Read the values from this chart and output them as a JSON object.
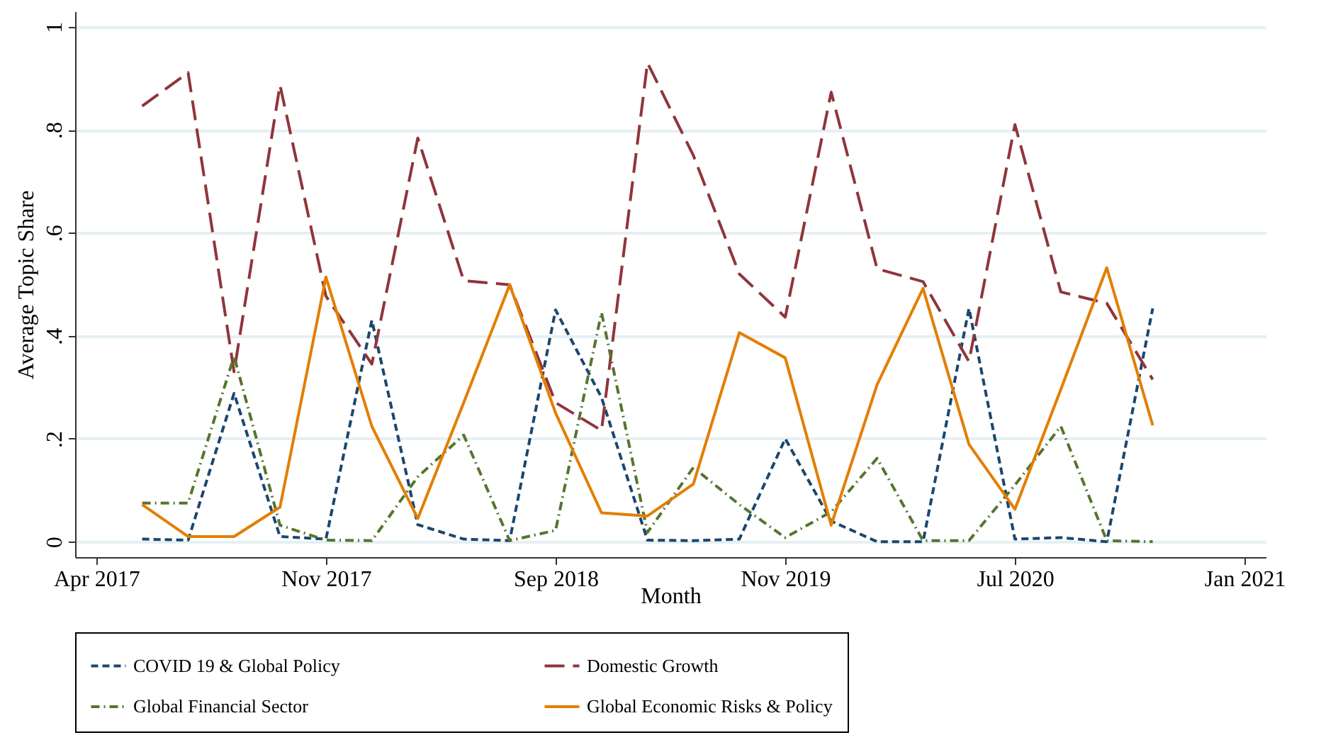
{
  "chart_data": {
    "type": "line",
    "xlabel": "Month",
    "ylabel": "Average Topic Share",
    "categories": [
      "Apr 2017",
      null,
      null,
      null,
      null,
      "Nov 2017",
      null,
      null,
      null,
      null,
      "Sep 2018",
      null,
      null,
      null,
      null,
      "Nov 2019",
      null,
      null,
      null,
      null,
      "Jul 2020",
      null,
      null,
      null,
      null,
      "Jan 2021"
    ],
    "ylim": [
      -0.03,
      1.03
    ],
    "yticks": [
      0,
      {
        "value": 0.2,
        "label": ".2"
      },
      {
        "value": 0.4,
        "label": ".4"
      },
      {
        "value": 0.6,
        "label": ".6"
      },
      {
        "value": 0.8,
        "label": ".8"
      },
      1
    ],
    "grid": "y",
    "legend": "bottom",
    "marker": "none",
    "series": [
      {
        "name": "COVID 19 & Global Policy",
        "color": "#1a476f",
        "line_style": "dashed",
        "values": [
          null,
          0.005,
          0.003,
          0.288,
          0.01,
          0.005,
          0.43,
          0.033,
          0.005,
          0.002,
          0.45,
          0.28,
          0.003,
          0.002,
          0.005,
          0.2,
          0.04,
          0.0,
          0.0,
          0.453,
          0.005,
          0.008,
          0.0,
          0.453,
          null,
          null
        ]
      },
      {
        "name": "Domestic Growth",
        "color": "#90353b",
        "line_style": "longdash",
        "values": [
          null,
          0.846,
          0.911,
          0.33,
          0.887,
          0.477,
          0.345,
          0.784,
          0.507,
          0.499,
          0.27,
          0.216,
          0.93,
          0.75,
          0.52,
          0.436,
          0.873,
          0.53,
          0.505,
          0.35,
          0.81,
          0.485,
          0.463,
          0.315,
          null,
          null
        ]
      },
      {
        "name": "Global Financial Sector",
        "color": "#55752f",
        "line_style": "dashdot",
        "values": [
          null,
          0.075,
          0.075,
          0.36,
          0.032,
          0.003,
          0.002,
          0.126,
          0.207,
          0.002,
          0.022,
          0.445,
          0.018,
          0.144,
          0.072,
          0.008,
          0.058,
          0.162,
          0.002,
          0.002,
          0.11,
          0.224,
          0.002,
          0.0,
          null,
          null
        ]
      },
      {
        "name": "Global Economic Risks & Policy",
        "color": "#e37e00",
        "line_style": "solid",
        "values": [
          null,
          0.072,
          0.01,
          0.01,
          0.067,
          0.514,
          0.224,
          0.045,
          0.27,
          0.499,
          0.25,
          0.056,
          0.05,
          0.112,
          0.406,
          0.357,
          0.032,
          0.305,
          0.492,
          0.189,
          0.063,
          0.296,
          0.532,
          0.226,
          null,
          null
        ]
      }
    ]
  }
}
